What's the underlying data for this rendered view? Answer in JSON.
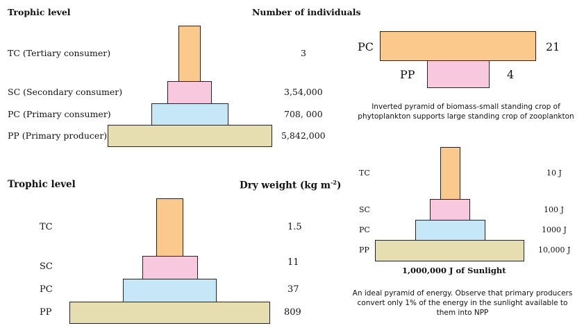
{
  "colors": {
    "tc": "#fcc98d",
    "sc": "#f8c8de",
    "pc": "#c6e7f7",
    "pp": "#e6deb0"
  },
  "numbers_pyramid": {
    "header_left": "Trophic level",
    "header_right": "Number of individuals",
    "levels": [
      {
        "label": "TC (Tertiary consumer)",
        "value": "3"
      },
      {
        "label": "SC (Secondary consumer)",
        "value": "3,54,000"
      },
      {
        "label": "PC (Primary consumer)",
        "value": "708, 000"
      },
      {
        "label": "PP (Primary producer)",
        "value": "5,842,000"
      }
    ]
  },
  "biomass_pyramid": {
    "header_left": "Trophic level",
    "header_right_prefix": "Dry weight (kg m",
    "header_right_sup": "-2",
    "header_right_suffix": ")",
    "levels": [
      {
        "label": "TC",
        "value": "1.5"
      },
      {
        "label": "SC",
        "value": "11"
      },
      {
        "label": "PC",
        "value": "37"
      },
      {
        "label": "PP",
        "value": "809"
      }
    ]
  },
  "inverted_pyramid": {
    "levels": [
      {
        "label": "PC",
        "value": "21"
      },
      {
        "label": "PP",
        "value": "4"
      }
    ],
    "caption": "Inverted pyramid of biomass-small standing crop of phytoplankton supports large standing crop of zooplankton"
  },
  "energy_pyramid": {
    "levels": [
      {
        "label": "TC",
        "value": "10 J"
      },
      {
        "label": "SC",
        "value": "100 J"
      },
      {
        "label": "PC",
        "value": "1000 J"
      },
      {
        "label": "PP",
        "value": "10,000 J"
      }
    ],
    "base_label": "1,000,000 J of Sunlight",
    "caption": "An ideal pyramid of energy. Observe that primary producers convert only 1% of the energy in the sunlight available to them into NPP"
  }
}
